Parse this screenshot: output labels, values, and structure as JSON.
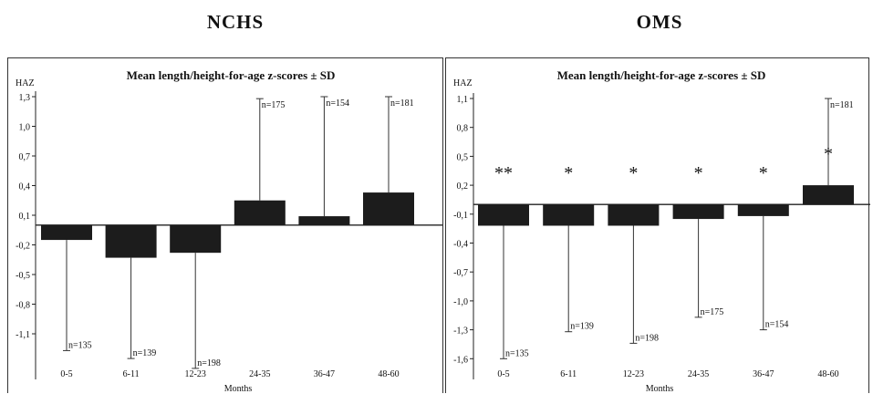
{
  "headings": {
    "left": "NCHS",
    "right": "OMS"
  },
  "chart_data": [
    {
      "type": "bar",
      "panel": "NCHS",
      "title": "Mean length/height-for-age z-scores ± SD",
      "ylabel": "HAZ",
      "xlabel": "Months",
      "categories": [
        "0-5",
        "6-11",
        "12-23",
        "24-35",
        "36-47",
        "48-60"
      ],
      "values": [
        -0.15,
        -0.33,
        -0.28,
        0.25,
        0.09,
        0.33
      ],
      "sd": [
        1.12,
        1.02,
        1.17,
        1.03,
        1.21,
        0.97
      ],
      "n_labels": [
        "n=135",
        "n=139",
        "n=198",
        "n=175",
        "n=154",
        "n=181"
      ],
      "significance": [
        "",
        "",
        "",
        "",
        "",
        ""
      ],
      "yticks": [
        1.3,
        1.0,
        0.7,
        0.4,
        0.1,
        -0.2,
        -0.5,
        -0.8,
        -1.1
      ],
      "ytick_labels": [
        "1,3",
        "1,0",
        "0,7",
        "0,4",
        "0,1",
        "-0,2",
        "-0,5",
        "-0,8",
        "-1,1"
      ],
      "ylim": [
        -1.6,
        1.35
      ],
      "grid": false
    },
    {
      "type": "bar",
      "panel": "OMS",
      "title": "Mean length/height-for-age z-scores ± SD",
      "ylabel": "HAZ",
      "xlabel": "Months",
      "categories": [
        "0-5",
        "6-11",
        "12-23",
        "24-35",
        "36-47",
        "48-60"
      ],
      "values": [
        -0.22,
        -0.22,
        -0.22,
        -0.15,
        -0.12,
        0.2
      ],
      "sd": [
        1.38,
        1.1,
        1.22,
        1.02,
        1.18,
        0.9
      ],
      "n_labels": [
        "n=135",
        "n=139",
        "n=198",
        "n=175",
        "n=154",
        "n=181"
      ],
      "significance": [
        "**",
        "*",
        "*",
        "*",
        "*",
        "*"
      ],
      "yticks": [
        1.1,
        0.8,
        0.5,
        0.2,
        -0.1,
        -0.4,
        -0.7,
        -1.0,
        -1.3,
        -1.6
      ],
      "ytick_labels": [
        "1,1",
        "0,8",
        "0,5",
        "0,2",
        "-0,1",
        "-0,4",
        "-0,7",
        "-1,0",
        "-1,3",
        "-1,6"
      ],
      "ylim": [
        -1.75,
        1.15
      ],
      "grid": false
    }
  ]
}
